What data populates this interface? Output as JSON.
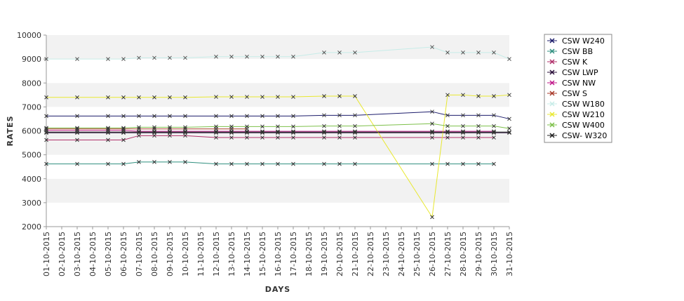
{
  "chart_data": {
    "type": "line",
    "xlabel": "DAYS",
    "ylabel": "RATES",
    "ylim": [
      2000,
      10000
    ],
    "yticks": [
      2000,
      3000,
      4000,
      5000,
      6000,
      7000,
      8000,
      9000,
      10000
    ],
    "grid": "horizontal alternating bands",
    "legend_position": "right",
    "categories": [
      "01-10-2015",
      "02-10-2015",
      "03-10-2015",
      "04-10-2015",
      "05-10-2015",
      "06-10-2015",
      "07-10-2015",
      "08-10-2015",
      "09-10-2015",
      "10-10-2015",
      "11-10-2015",
      "12-10-2015",
      "13-10-2015",
      "14-10-2015",
      "15-10-2015",
      "16-10-2015",
      "17-10-2015",
      "18-10-2015",
      "19-10-2015",
      "20-10-2015",
      "21-10-2015",
      "22-10-2015",
      "23-10-2015",
      "24-10-2015",
      "25-10-2015",
      "26-10-2015",
      "27-10-2015",
      "28-10-2015",
      "29-10-2015",
      "30-10-2015",
      "31-10-2015"
    ],
    "series": [
      {
        "name": "CSW  W240",
        "color": "#1c1c6b",
        "values": [
          6620,
          null,
          6620,
          null,
          6620,
          6620,
          6620,
          6620,
          6620,
          6620,
          null,
          6620,
          6620,
          6620,
          6620,
          6620,
          6620,
          null,
          6650,
          6650,
          6650,
          null,
          null,
          null,
          null,
          6800,
          6650,
          6650,
          6650,
          6650,
          6500
        ]
      },
      {
        "name": "CSW BB",
        "color": "#2f8f7f",
        "values": [
          4620,
          null,
          4620,
          null,
          4620,
          4620,
          4700,
          4700,
          4700,
          4700,
          null,
          4620,
          4620,
          4620,
          4620,
          4620,
          4620,
          null,
          4620,
          4620,
          4620,
          null,
          null,
          null,
          null,
          4620,
          4620,
          4620,
          4620,
          4620,
          null
        ]
      },
      {
        "name": "CSW K",
        "color": "#b0306a",
        "values": [
          5620,
          null,
          5620,
          null,
          5620,
          5620,
          5800,
          5800,
          5800,
          5800,
          null,
          5720,
          5720,
          5720,
          5720,
          5720,
          5720,
          null,
          5720,
          5720,
          5720,
          null,
          null,
          null,
          null,
          5720,
          5720,
          5720,
          5720,
          5720,
          null
        ]
      },
      {
        "name": "CSW LWP",
        "color": "#2a0f3a",
        "values": [
          5920,
          null,
          5920,
          null,
          5920,
          5920,
          5920,
          5920,
          5920,
          5920,
          null,
          5920,
          5920,
          5920,
          5920,
          5920,
          5920,
          null,
          5920,
          5920,
          5920,
          null,
          null,
          null,
          null,
          5920,
          5920,
          5920,
          5920,
          5920,
          5920
        ]
      },
      {
        "name": "CSW NW",
        "color": "#c0188a",
        "values": [
          6020,
          null,
          6020,
          null,
          6020,
          6020,
          5980,
          5980,
          5980,
          5980,
          null,
          5980,
          5980,
          5980,
          5980,
          5980,
          5980,
          null,
          5980,
          5980,
          5980,
          null,
          null,
          null,
          null,
          5980,
          5980,
          5980,
          5980,
          5980,
          null
        ]
      },
      {
        "name": "CSW S",
        "color": "#a83a2a",
        "values": [
          6080,
          null,
          6080,
          null,
          6080,
          6080,
          6080,
          6080,
          6080,
          6080,
          null,
          6080,
          6080,
          6080,
          null,
          null,
          null,
          null,
          null,
          null,
          null,
          null,
          null,
          null,
          null,
          null,
          null,
          null,
          null,
          null,
          null
        ]
      },
      {
        "name": "CSW W180",
        "color": "#c7ece8",
        "values": [
          9000,
          null,
          9000,
          null,
          9000,
          9000,
          9050,
          9050,
          9050,
          9050,
          null,
          9100,
          9100,
          9100,
          9100,
          9100,
          9100,
          null,
          9270,
          9270,
          9270,
          null,
          null,
          null,
          null,
          9500,
          9270,
          9270,
          9270,
          9270,
          9000
        ]
      },
      {
        "name": "CSW W210",
        "color": "#e8e830",
        "values": [
          7400,
          null,
          7400,
          null,
          7400,
          7400,
          7400,
          7400,
          7400,
          7400,
          null,
          7420,
          7420,
          7420,
          7420,
          7420,
          7420,
          null,
          7450,
          7450,
          7450,
          null,
          null,
          null,
          null,
          2400,
          7500,
          7500,
          7450,
          7450,
          7500
        ]
      },
      {
        "name": "CSW W400",
        "color": "#7dc04a",
        "values": [
          6120,
          null,
          6120,
          null,
          6120,
          6120,
          6150,
          6150,
          6150,
          6150,
          null,
          6180,
          6180,
          6180,
          6180,
          6180,
          6180,
          null,
          6200,
          6200,
          6200,
          null,
          null,
          null,
          null,
          6300,
          6200,
          6200,
          6200,
          6200,
          6100
        ]
      },
      {
        "name": "CSW- W320",
        "color": "#222222",
        "values": [
          5950,
          null,
          5950,
          null,
          5950,
          5950,
          5950,
          5950,
          5950,
          5950,
          null,
          5950,
          5950,
          5950,
          5950,
          5950,
          5950,
          null,
          5950,
          5950,
          5950,
          null,
          null,
          null,
          null,
          5950,
          5950,
          5950,
          5950,
          5950,
          5950
        ]
      }
    ]
  }
}
